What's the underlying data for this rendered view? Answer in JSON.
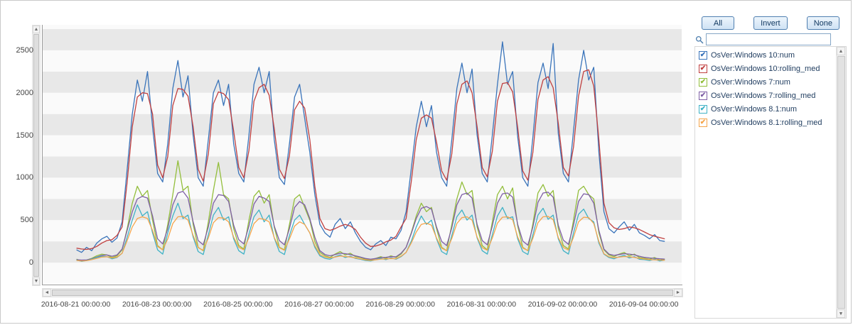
{
  "panel": {
    "buttons": [
      {
        "label": "All"
      },
      {
        "label": "Invert"
      },
      {
        "label": "None"
      }
    ],
    "search": {
      "value": "",
      "placeholder": ""
    },
    "legend": [
      {
        "label": "OsVer:Windows 10:num",
        "color": "#3a74ba",
        "checked": true
      },
      {
        "label": "OsVer:Windows 10:rolling_med",
        "color": "#c04040",
        "checked": true
      },
      {
        "label": "OsVer:Windows 7:num",
        "color": "#93be3c",
        "checked": true
      },
      {
        "label": "OsVer:Windows 7:rolling_med",
        "color": "#7e5fa5",
        "checked": true
      },
      {
        "label": "OsVer:Windows 8.1:num",
        "color": "#3fb2c6",
        "checked": true
      },
      {
        "label": "OsVer:Windows 8.1:rolling_med",
        "color": "#f5a54b",
        "checked": true
      }
    ]
  },
  "chart_data": {
    "type": "line",
    "title": "",
    "x_start": "2016-08-21 00:00:00",
    "x_step_hours": 3,
    "x_tick_every_hours": 48,
    "x_tick_labels": [
      "2016-08-21 00:00:00",
      "2016-08-23 00:00:00",
      "2016-08-25 00:00:00",
      "2016-08-27 00:00:00",
      "2016-08-29 00:00:00",
      "2016-08-31 00:00:00",
      "2016-09-02 00:00:00",
      "2016-09-04 00:00:00"
    ],
    "y_ticks": [
      0,
      500,
      1000,
      1500,
      2000,
      2500
    ],
    "ylim": [
      -250,
      2800
    ],
    "xlim_hours": [
      -20,
      358
    ],
    "band_step": 250,
    "band_colors": [
      "#e8e8e8",
      "#fafafa"
    ],
    "grid": "banded",
    "legend_position": "right-panel",
    "series": [
      {
        "name": "OsVer:Windows 10:num",
        "color": "#3a74ba",
        "values": [
          150,
          120,
          180,
          140,
          230,
          280,
          310,
          240,
          290,
          480,
          1100,
          1750,
          2150,
          1900,
          2250,
          1600,
          1050,
          950,
          1400,
          2050,
          2380,
          1950,
          2200,
          1500,
          1000,
          900,
          1450,
          2000,
          2150,
          1850,
          2100,
          1400,
          1050,
          950,
          1500,
          2100,
          2300,
          2000,
          2250,
          1450,
          1000,
          920,
          1400,
          1950,
          2100,
          1700,
          1300,
          800,
          450,
          350,
          300,
          450,
          520,
          400,
          480,
          350,
          250,
          180,
          150,
          220,
          260,
          200,
          300,
          280,
          380,
          600,
          1100,
          1600,
          1900,
          1600,
          1850,
          1300,
          1000,
          900,
          1450,
          2050,
          2350,
          2000,
          2280,
          1500,
          1050,
          950,
          1500,
          2100,
          2600,
          2100,
          2250,
          1480,
          1000,
          900,
          1480,
          2120,
          2350,
          2050,
          2580,
          1520,
          1050,
          950,
          1550,
          2150,
          2500,
          2150,
          2300,
          1300,
          600,
          400,
          350,
          420,
          480,
          380,
          450,
          350,
          320,
          280,
          330,
          260,
          250
        ]
      },
      {
        "name": "OsVer:Windows 10:rolling_med",
        "color": "#c04040",
        "values": [
          170,
          160,
          155,
          165,
          190,
          230,
          260,
          270,
          320,
          420,
          950,
          1600,
          1950,
          2000,
          1990,
          1750,
          1150,
          1000,
          1250,
          1850,
          2050,
          2040,
          1960,
          1600,
          1100,
          960,
          1280,
          1870,
          2010,
          1990,
          1920,
          1550,
          1120,
          1000,
          1320,
          1900,
          2060,
          2100,
          1970,
          1580,
          1100,
          990,
          1260,
          1800,
          1900,
          1820,
          1450,
          900,
          520,
          400,
          380,
          400,
          430,
          450,
          430,
          390,
          300,
          230,
          190,
          195,
          215,
          245,
          265,
          310,
          420,
          520,
          950,
          1450,
          1700,
          1740,
          1700,
          1420,
          1080,
          970,
          1280,
          1870,
          2100,
          2140,
          2000,
          1600,
          1120,
          1010,
          1310,
          1900,
          2110,
          2120,
          2010,
          1590,
          1080,
          970,
          1300,
          1920,
          2150,
          2190,
          2060,
          1640,
          1120,
          1020,
          1360,
          1960,
          2250,
          2270,
          2080,
          1450,
          700,
          470,
          410,
          390,
          400,
          420,
          410,
          390,
          360,
          330,
          310,
          295,
          280
        ]
      },
      {
        "name": "OsVer:Windows 7:num",
        "color": "#93be3c",
        "values": [
          40,
          20,
          30,
          50,
          80,
          100,
          90,
          60,
          80,
          150,
          400,
          700,
          900,
          780,
          850,
          500,
          200,
          150,
          450,
          800,
          1200,
          850,
          900,
          450,
          180,
          140,
          480,
          850,
          1180,
          800,
          750,
          400,
          200,
          160,
          500,
          780,
          850,
          700,
          800,
          420,
          180,
          150,
          450,
          750,
          800,
          650,
          500,
          250,
          120,
          80,
          60,
          100,
          130,
          90,
          110,
          70,
          60,
          40,
          30,
          50,
          70,
          50,
          80,
          60,
          100,
          180,
          350,
          550,
          700,
          600,
          650,
          400,
          180,
          140,
          450,
          750,
          950,
          800,
          850,
          420,
          200,
          150,
          480,
          800,
          900,
          750,
          880,
          430,
          180,
          140,
          460,
          820,
          920,
          780,
          850,
          400,
          200,
          160,
          500,
          850,
          900,
          800,
          750,
          350,
          150,
          90,
          70,
          100,
          120,
          80,
          100,
          60,
          50,
          40,
          60,
          30,
          40
        ]
      },
      {
        "name": "OsVer:Windows 7:rolling_med",
        "color": "#7e5fa5",
        "values": [
          35,
          30,
          32,
          45,
          65,
          85,
          90,
          75,
          90,
          160,
          380,
          600,
          750,
          780,
          760,
          550,
          280,
          220,
          400,
          680,
          820,
          840,
          760,
          480,
          260,
          210,
          420,
          700,
          800,
          790,
          720,
          440,
          270,
          220,
          430,
          690,
          780,
          760,
          720,
          430,
          260,
          210,
          400,
          650,
          720,
          680,
          520,
          300,
          140,
          95,
          80,
          95,
          110,
          105,
          95,
          80,
          65,
          48,
          40,
          48,
          60,
          62,
          70,
          68,
          110,
          180,
          340,
          520,
          640,
          660,
          630,
          420,
          250,
          200,
          410,
          680,
          800,
          820,
          760,
          450,
          260,
          210,
          430,
          700,
          810,
          820,
          770,
          450,
          255,
          205,
          420,
          710,
          820,
          830,
          770,
          440,
          265,
          215,
          440,
          720,
          810,
          800,
          700,
          380,
          160,
          100,
          85,
          95,
          105,
          100,
          92,
          75,
          62,
          55,
          50,
          45,
          42
        ]
      },
      {
        "name": "OsVer:Windows 8.1:num",
        "color": "#3fb2c6",
        "values": [
          30,
          15,
          25,
          40,
          60,
          75,
          70,
          45,
          60,
          110,
          300,
          500,
          680,
          550,
          600,
          350,
          150,
          100,
          350,
          550,
          700,
          520,
          560,
          300,
          130,
          95,
          330,
          560,
          650,
          500,
          540,
          280,
          140,
          100,
          340,
          540,
          620,
          480,
          560,
          290,
          130,
          95,
          320,
          500,
          560,
          450,
          350,
          180,
          80,
          50,
          40,
          70,
          90,
          60,
          75,
          50,
          40,
          25,
          20,
          35,
          50,
          35,
          55,
          40,
          70,
          120,
          250,
          420,
          550,
          450,
          500,
          280,
          130,
          95,
          320,
          540,
          620,
          500,
          560,
          290,
          140,
          100,
          330,
          550,
          650,
          520,
          540,
          280,
          130,
          95,
          330,
          560,
          640,
          510,
          560,
          280,
          140,
          100,
          350,
          570,
          630,
          520,
          480,
          230,
          100,
          60,
          45,
          70,
          85,
          55,
          70,
          40,
          35,
          25,
          40,
          20,
          30
        ]
      },
      {
        "name": "OsVer:Windows 8.1:rolling_med",
        "color": "#f5a54b",
        "values": [
          25,
          20,
          22,
          35,
          50,
          65,
          68,
          55,
          65,
          110,
          260,
          420,
          520,
          540,
          520,
          380,
          190,
          150,
          280,
          460,
          540,
          545,
          500,
          320,
          175,
          145,
          290,
          470,
          530,
          525,
          480,
          300,
          180,
          150,
          295,
          460,
          520,
          510,
          480,
          295,
          175,
          145,
          280,
          430,
          480,
          450,
          350,
          200,
          95,
          65,
          55,
          65,
          78,
          72,
          66,
          55,
          45,
          32,
          27,
          33,
          42,
          43,
          48,
          46,
          75,
          120,
          230,
          360,
          450,
          465,
          440,
          290,
          170,
          140,
          285,
          460,
          530,
          540,
          500,
          300,
          175,
          145,
          290,
          465,
          535,
          540,
          505,
          300,
          172,
          142,
          288,
          470,
          540,
          545,
          505,
          295,
          178,
          148,
          300,
          480,
          535,
          530,
          460,
          250,
          105,
          68,
          58,
          65,
          72,
          68,
          62,
          50,
          42,
          36,
          33,
          30,
          28
        ]
      }
    ]
  }
}
